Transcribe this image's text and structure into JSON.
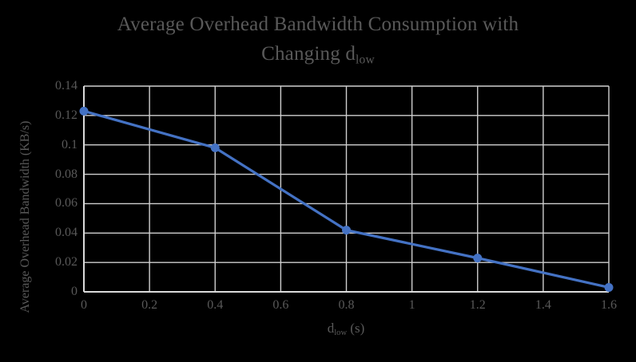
{
  "chart_data": {
    "type": "line",
    "title": "Average Overhead Bandwidth Consumption with Changing d_low",
    "title_line1": "Average Overhead Bandwidth Consumption with",
    "title_line2_main": "Changing d",
    "title_line2_sub": "low",
    "xlabel": {
      "main": "d",
      "sub": "low",
      "suffix": " (s)"
    },
    "ylabel": "Average Overhead Bandwidth (KB/s)",
    "x": [
      0,
      0.4,
      0.8,
      1.2,
      1.6
    ],
    "values": [
      0.123,
      0.098,
      0.042,
      0.023,
      0.003
    ],
    "xlim": [
      0,
      1.6
    ],
    "ylim": [
      0,
      0.14
    ],
    "x_tick_values": [
      0,
      0.2,
      0.4,
      0.6,
      0.8,
      1,
      1.2,
      1.4,
      1.6
    ],
    "x_tick_labels": [
      "0",
      "0.2",
      "0.4",
      "0.6",
      "0.8",
      "1",
      "1.2",
      "1.4",
      "1.6"
    ],
    "y_tick_values": [
      0,
      0.02,
      0.04,
      0.06,
      0.08,
      0.1,
      0.12,
      0.14
    ],
    "y_tick_labels": [
      "0",
      "0.02",
      "0.04",
      "0.06",
      "0.08",
      "0.1",
      "0.12",
      "0.14"
    ],
    "grid": true,
    "legend": "none",
    "marker": "circle",
    "colors": {
      "background": "#000000",
      "text": "#595959",
      "grid": "#CFCFCF",
      "axis": "#DADADA",
      "series": "#4472C4"
    }
  }
}
